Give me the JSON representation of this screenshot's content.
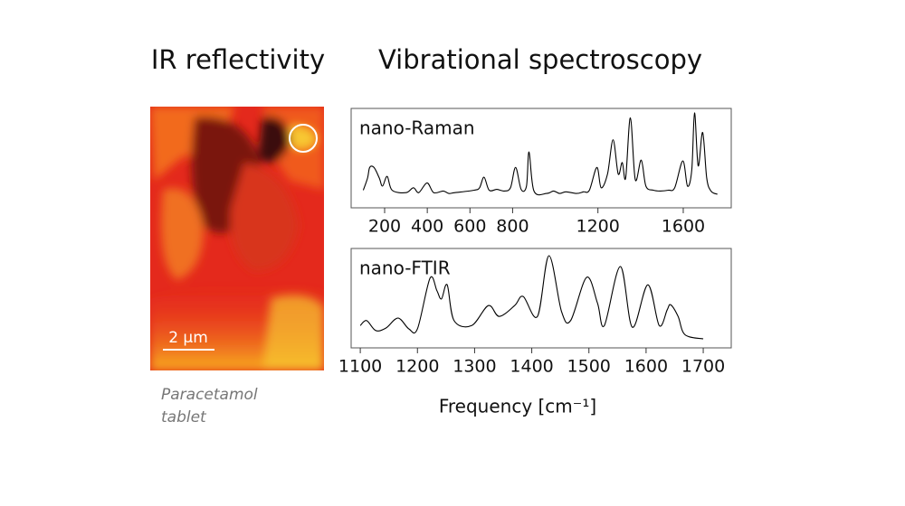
{
  "headings": {
    "map": "IR reflectivity",
    "spectra": "Vibrational spectroscopy"
  },
  "map": {
    "scale_bar": "2 µm",
    "caption": [
      "Paracetamol",
      "tablet"
    ]
  },
  "chart_data": [
    {
      "type": "line",
      "title": "nano-Raman",
      "x": [
        100,
        120,
        130,
        150,
        175,
        190,
        212,
        235,
        300,
        335,
        360,
        399,
        430,
        475,
        500,
        530,
        620,
        645,
        666,
        690,
        726,
        760,
        790,
        814,
        840,
        865,
        877,
        900,
        960,
        992,
        1020,
        1050,
        1100,
        1132,
        1160,
        1195,
        1215,
        1245,
        1271,
        1295,
        1314,
        1330,
        1352,
        1375,
        1403,
        1425,
        1460,
        1492,
        1530,
        1560,
        1598,
        1620,
        1640,
        1653,
        1670,
        1691,
        1710,
        1730,
        1760
      ],
      "series": [
        {
          "color": "#000000",
          "values": [
            0.05,
            0.2,
            0.33,
            0.33,
            0.2,
            0.1,
            0.22,
            0.05,
            0.02,
            0.08,
            0.02,
            0.14,
            0.02,
            0.04,
            0.01,
            0.02,
            0.05,
            0.08,
            0.21,
            0.05,
            0.06,
            0.04,
            0.08,
            0.33,
            0.06,
            0.1,
            0.52,
            0.04,
            0.01,
            0.04,
            0.01,
            0.03,
            0.01,
            0.03,
            0.05,
            0.33,
            0.08,
            0.25,
            0.67,
            0.25,
            0.39,
            0.2,
            0.94,
            0.18,
            0.42,
            0.1,
            0.05,
            0.04,
            0.05,
            0.08,
            0.41,
            0.1,
            0.3,
            1.0,
            0.35,
            0.76,
            0.2,
            0.04,
            0.0
          ]
        }
      ],
      "xlim": [
        43,
        1825
      ],
      "xticks": [
        200,
        400,
        600,
        800,
        1200,
        1600
      ],
      "ylim": [
        0,
        1
      ]
    },
    {
      "type": "line",
      "title": "nano-FTIR",
      "xlabel": "Frequency [cm⁻¹]",
      "x": [
        1100,
        1111,
        1127,
        1145,
        1166,
        1185,
        1200,
        1222,
        1234,
        1242,
        1252,
        1264,
        1295,
        1324,
        1343,
        1370,
        1385,
        1410,
        1430,
        1452,
        1468,
        1496,
        1515,
        1527,
        1555,
        1576,
        1603,
        1623,
        1637,
        1643,
        1656,
        1668,
        1700
      ],
      "series": [
        {
          "color": "#000000",
          "values": [
            0.16,
            0.22,
            0.1,
            0.13,
            0.25,
            0.12,
            0.12,
            0.73,
            0.58,
            0.48,
            0.65,
            0.22,
            0.16,
            0.4,
            0.27,
            0.4,
            0.51,
            0.27,
            1.0,
            0.33,
            0.22,
            0.74,
            0.43,
            0.16,
            0.87,
            0.14,
            0.65,
            0.16,
            0.35,
            0.41,
            0.27,
            0.05,
            0.0
          ]
        }
      ],
      "xlim": [
        1084,
        1749
      ],
      "xticks": [
        1100,
        1200,
        1300,
        1400,
        1500,
        1600,
        1700
      ],
      "ylim": [
        0,
        1
      ]
    }
  ]
}
